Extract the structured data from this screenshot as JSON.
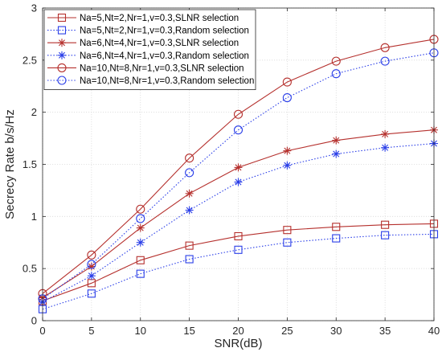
{
  "chart_data": {
    "type": "line",
    "xlabel": "SNR(dB)",
    "ylabel": "Secrecy Rate b/s/Hz",
    "xlim": [
      0,
      40
    ],
    "ylim": [
      0,
      3
    ],
    "x_ticks": [
      "0",
      "5",
      "10",
      "15",
      "20",
      "25",
      "30",
      "35",
      "40"
    ],
    "y_ticks": [
      "0",
      "0.5",
      "1",
      "1.5",
      "2",
      "2.5",
      "3"
    ],
    "grid": true,
    "legend_position": "top-left",
    "x": [
      0,
      5,
      10,
      15,
      20,
      25,
      30,
      35,
      40
    ],
    "series": [
      {
        "name": "Na=5,Nt=2,Nr=1,v=0.3,SLNR selection",
        "marker": "square",
        "line_style": "solid",
        "color": "#b5302d",
        "values": [
          0.19,
          0.36,
          0.58,
          0.72,
          0.81,
          0.87,
          0.9,
          0.92,
          0.93
        ]
      },
      {
        "name": "Na=5,Nt=2,Nr=1,v=0.3,Random selection",
        "marker": "square",
        "line_style": "dotted",
        "color": "#2a3ee8",
        "values": [
          0.11,
          0.26,
          0.45,
          0.59,
          0.68,
          0.75,
          0.79,
          0.82,
          0.83
        ]
      },
      {
        "name": "Na=6,Nt=4,Nr=1,v=0.3,SLNR selection",
        "marker": "asterisk",
        "line_style": "solid",
        "color": "#b5302d",
        "values": [
          0.22,
          0.52,
          0.89,
          1.22,
          1.47,
          1.63,
          1.73,
          1.79,
          1.83
        ]
      },
      {
        "name": "Na=6,Nt=4,Nr=1,v=0.3,Random selection",
        "marker": "asterisk",
        "line_style": "dotted",
        "color": "#2a3ee8",
        "values": [
          0.18,
          0.43,
          0.75,
          1.06,
          1.33,
          1.49,
          1.6,
          1.66,
          1.7
        ]
      },
      {
        "name": "Na=10,Nt=8,Nr=1,v=0.3,SLNR selection",
        "marker": "circle",
        "line_style": "solid",
        "color": "#b5302d",
        "values": [
          0.26,
          0.63,
          1.07,
          1.56,
          1.98,
          2.29,
          2.49,
          2.62,
          2.7
        ]
      },
      {
        "name": "Na=10,Nt=8,Nr=1,v=0.3,Random selection",
        "marker": "circle",
        "line_style": "dotted",
        "color": "#2a3ee8",
        "values": [
          0.21,
          0.54,
          0.98,
          1.42,
          1.83,
          2.14,
          2.37,
          2.49,
          2.57
        ]
      }
    ]
  }
}
